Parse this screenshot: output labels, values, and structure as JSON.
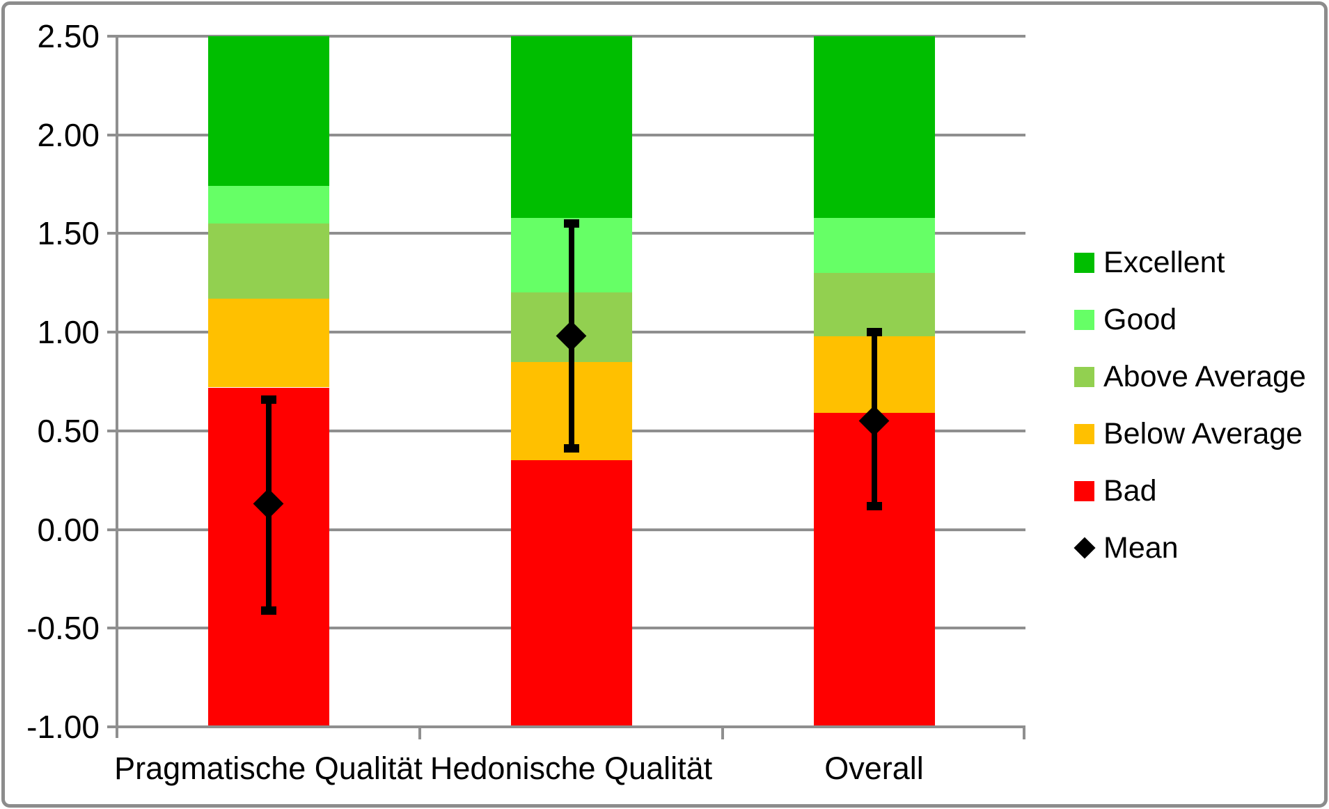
{
  "chart_data": {
    "type": "bar",
    "subtype": "stacked-benchmark-with-error-bars",
    "title": "",
    "categories": [
      "Pragmatische Qualität",
      "Hedonische Qualität",
      "Overall"
    ],
    "ylim": [
      -1.0,
      2.5
    ],
    "ytick_step": 0.5,
    "ytick_labels": [
      "2.50",
      "2.00",
      "1.50",
      "1.00",
      "0.50",
      "0.00",
      "-0.50",
      "-1.00"
    ],
    "grid": true,
    "legend_position": "right",
    "bands": [
      {
        "label": "Excellent",
        "color": "#00BE00"
      },
      {
        "label": "Good",
        "color": "#66FF66"
      },
      {
        "label": "Above Average",
        "color": "#92D050"
      },
      {
        "label": "Below Average",
        "color": "#FFC000"
      },
      {
        "label": "Bad",
        "color": "#FF0000"
      }
    ],
    "series": [
      {
        "category": "Pragmatische Qualität",
        "band_edges_top_to_bottom": [
          2.5,
          1.74,
          1.55,
          1.17,
          0.72,
          -1.0
        ],
        "mean": 0.13,
        "error_high": 0.66,
        "error_low": -0.41
      },
      {
        "category": "Hedonische Qualität",
        "band_edges_top_to_bottom": [
          2.5,
          1.58,
          1.2,
          0.85,
          0.35,
          -1.0
        ],
        "mean": 0.98,
        "error_high": 1.55,
        "error_low": 0.41
      },
      {
        "category": "Overall",
        "band_edges_top_to_bottom": [
          2.5,
          1.58,
          1.3,
          0.98,
          0.59,
          -1.0
        ],
        "mean": 0.55,
        "error_high": 1.0,
        "error_low": 0.12
      }
    ],
    "mean_marker": {
      "label": "Mean",
      "shape": "diamond",
      "color": "#000000"
    }
  },
  "colors": {
    "gridline": "#8F8F8F",
    "axis": "#8F8F8F",
    "frame_border": "#8C8C8C",
    "background": "#FFFFFF",
    "text": "#000000",
    "error_bar": "#000000"
  }
}
